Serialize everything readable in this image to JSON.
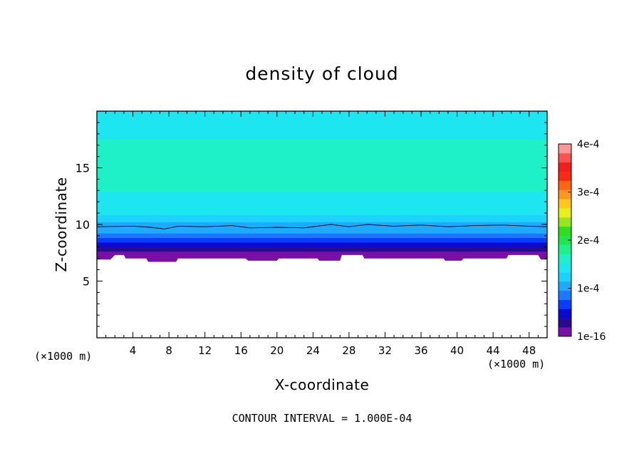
{
  "chart_data": {
    "type": "heatmap",
    "title": "density of cloud",
    "xlabel": "X-coordinate",
    "ylabel": "Z-coordinate",
    "x_unit": "(×1000 m)",
    "z_unit": "(×1000 m)",
    "xlim": [
      0,
      50
    ],
    "ylim": [
      0,
      20
    ],
    "x_ticks": [
      4,
      8,
      12,
      16,
      20,
      24,
      28,
      32,
      36,
      40,
      44,
      48
    ],
    "y_ticks": [
      5,
      10,
      15
    ],
    "footer": "CONTOUR INTERVAL = 1.000E-04",
    "contour_interval": 0.0001,
    "contour_level_z": 9.8,
    "colorbar": {
      "min": 1e-16,
      "max": 0.0004,
      "tick_values": [
        1e-16,
        0.0001,
        0.0002,
        0.0003,
        0.0004
      ],
      "tick_labels": [
        "1e-16",
        "1e-4",
        "2e-4",
        "3e-4",
        "4e-4"
      ],
      "colors": [
        "#7a0fa8",
        "#2a0a90",
        "#0a0ad0",
        "#0a3cff",
        "#1e78ff",
        "#1eaaff",
        "#1ed2ff",
        "#1ee6f0",
        "#1ef0c8",
        "#1ef08c",
        "#1ee650",
        "#32dc1e",
        "#96e61e",
        "#e6f01e",
        "#ffc81e",
        "#ff961e",
        "#ff6414",
        "#ff2814",
        "#f01e1e",
        "#ff5050",
        "#ff9696"
      ]
    },
    "profile": [
      {
        "z": 19.75,
        "value": 0.000135
      },
      {
        "z": 18.5,
        "value": 0.000145
      },
      {
        "z": 17.5,
        "value": 0.000152
      },
      {
        "z": 16.6,
        "value": 0.000158
      },
      {
        "z": 15.5,
        "value": 0.000165
      },
      {
        "z": 13.8,
        "value": 0.000165
      },
      {
        "z": 12.9,
        "value": 0.000158
      },
      {
        "z": 12.1,
        "value": 0.000152
      },
      {
        "z": 11.4,
        "value": 0.000145
      },
      {
        "z": 10.8,
        "value": 0.000135
      },
      {
        "z": 10.2,
        "value": 0.000125
      },
      {
        "z": 9.7,
        "value": 0.000112
      },
      {
        "z": 9.2,
        "value": 0.0001
      },
      {
        "z": 8.8,
        "value": 8e-05
      },
      {
        "z": 8.4,
        "value": 6e-05
      },
      {
        "z": 8.0,
        "value": 4e-05
      },
      {
        "z": 7.6,
        "value": 2e-05
      },
      {
        "z": 7.2,
        "value": 5e-06
      }
    ],
    "cloud_base": [
      {
        "x": 0,
        "z": 6.9
      },
      {
        "x": 1.5,
        "z": 6.9
      },
      {
        "x": 2.0,
        "z": 7.3
      },
      {
        "x": 3.0,
        "z": 7.3
      },
      {
        "x": 3.2,
        "z": 7.0
      },
      {
        "x": 5.5,
        "z": 7.0
      },
      {
        "x": 5.7,
        "z": 6.7
      },
      {
        "x": 8.8,
        "z": 6.7
      },
      {
        "x": 9.0,
        "z": 7.0
      },
      {
        "x": 16.5,
        "z": 7.0
      },
      {
        "x": 16.8,
        "z": 6.8
      },
      {
        "x": 20.0,
        "z": 6.8
      },
      {
        "x": 20.2,
        "z": 7.0
      },
      {
        "x": 24.5,
        "z": 7.0
      },
      {
        "x": 24.7,
        "z": 6.8
      },
      {
        "x": 27.0,
        "z": 6.8
      },
      {
        "x": 27.2,
        "z": 7.3
      },
      {
        "x": 29.5,
        "z": 7.3
      },
      {
        "x": 29.7,
        "z": 7.0
      },
      {
        "x": 38.5,
        "z": 7.0
      },
      {
        "x": 38.7,
        "z": 6.8
      },
      {
        "x": 40.5,
        "z": 6.8
      },
      {
        "x": 40.7,
        "z": 7.0
      },
      {
        "x": 45.5,
        "z": 7.0
      },
      {
        "x": 45.7,
        "z": 7.3
      },
      {
        "x": 49.0,
        "z": 7.3
      },
      {
        "x": 49.3,
        "z": 6.9
      },
      {
        "x": 50,
        "z": 6.9
      }
    ],
    "contour_line": [
      {
        "x": 0,
        "z": 9.8
      },
      {
        "x": 4,
        "z": 9.85
      },
      {
        "x": 6,
        "z": 9.75
      },
      {
        "x": 7.5,
        "z": 9.6
      },
      {
        "x": 9,
        "z": 9.85
      },
      {
        "x": 12,
        "z": 9.8
      },
      {
        "x": 15,
        "z": 9.9
      },
      {
        "x": 17,
        "z": 9.7
      },
      {
        "x": 20,
        "z": 9.75
      },
      {
        "x": 23,
        "z": 9.7
      },
      {
        "x": 26,
        "z": 10.0
      },
      {
        "x": 28,
        "z": 9.8
      },
      {
        "x": 30,
        "z": 10.0
      },
      {
        "x": 33,
        "z": 9.85
      },
      {
        "x": 36,
        "z": 9.95
      },
      {
        "x": 39,
        "z": 9.8
      },
      {
        "x": 42,
        "z": 9.9
      },
      {
        "x": 45,
        "z": 9.95
      },
      {
        "x": 48,
        "z": 9.85
      },
      {
        "x": 50,
        "z": 9.8
      }
    ]
  }
}
